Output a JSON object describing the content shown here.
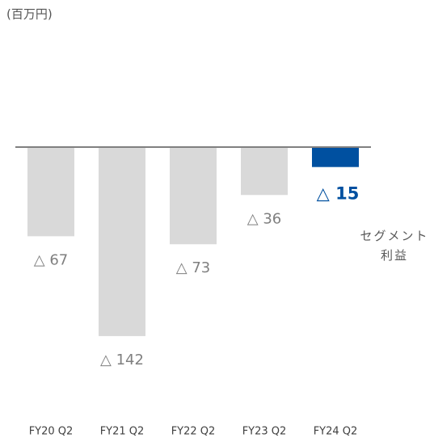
{
  "chart_data": {
    "type": "bar",
    "unit_label": "(百万円)",
    "categories": [
      "FY20 Q2",
      "FY21 Q2",
      "FY22 Q2",
      "FY23 Q2",
      "FY24 Q2"
    ],
    "series": [
      {
        "name": "セグメント利益",
        "values": [
          -67,
          -142,
          -73,
          -36,
          -15
        ],
        "value_labels": [
          "△ 67",
          "△ 142",
          "△ 73",
          "△ 36",
          "△ 15"
        ],
        "colors": [
          "#d9d9d9",
          "#d9d9d9",
          "#d9d9d9",
          "#d9d9d9",
          "#0050a0"
        ],
        "value_label_colors": [
          "#7f7f7f",
          "#7f7f7f",
          "#7f7f7f",
          "#7f7f7f",
          "#0050a0"
        ]
      }
    ],
    "ylim": [
      -190,
      86
    ]
  }
}
